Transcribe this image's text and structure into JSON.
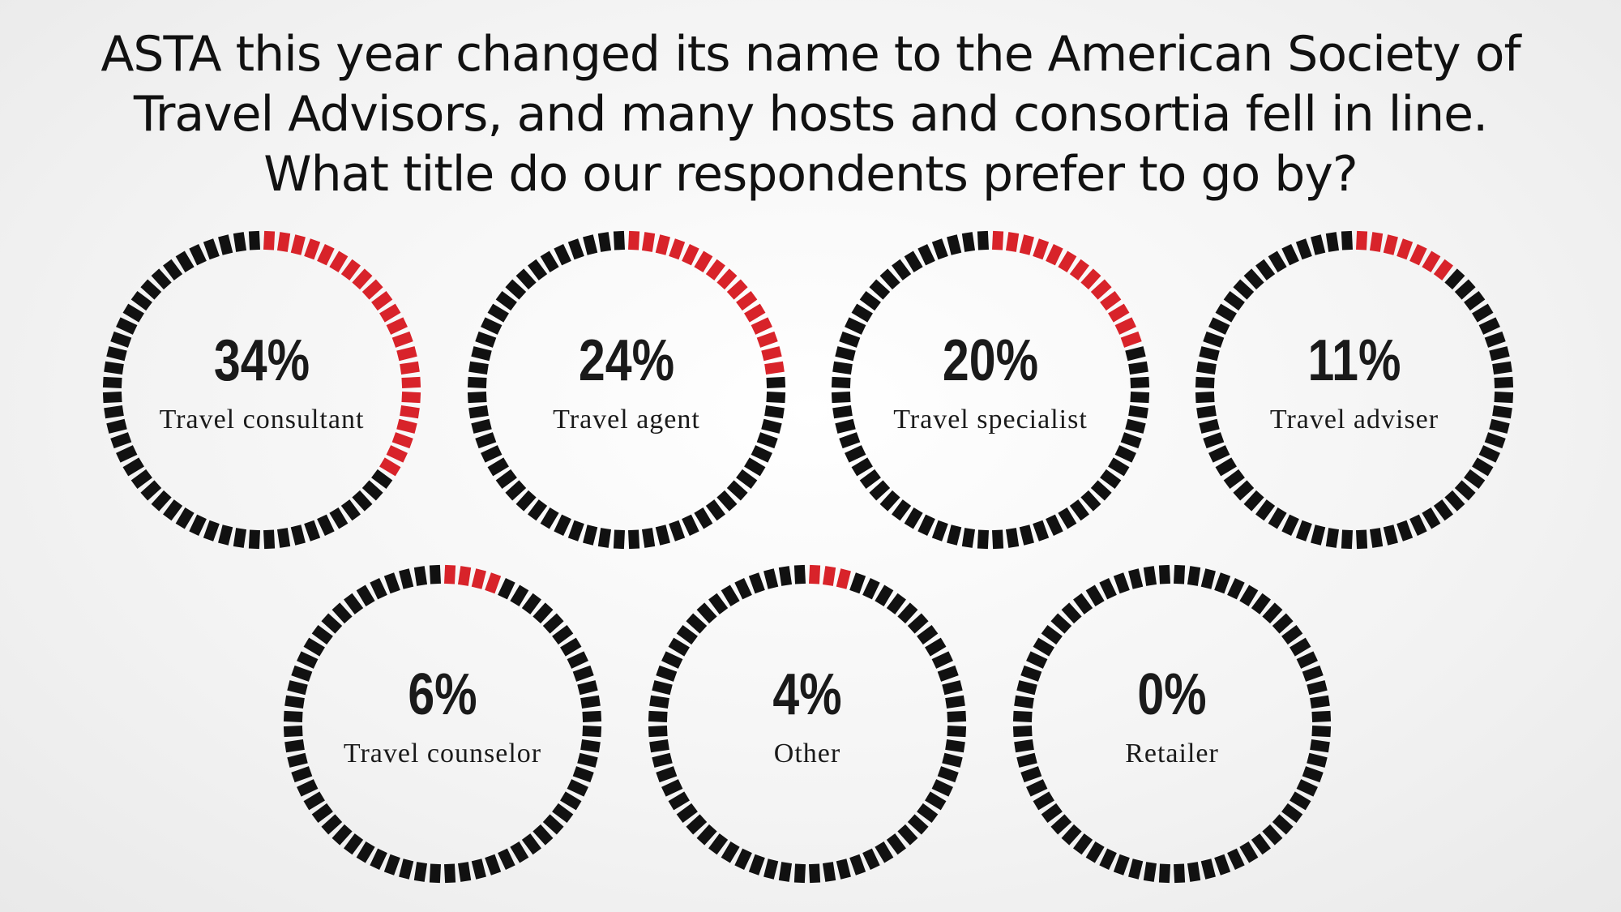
{
  "chart_data": {
    "type": "gauge",
    "title": "ASTA this year changed its name to the American Society of\nTravel Advisors, and many hosts and consortia fell in line.\nWhat title do our respondents prefer to go by?",
    "categories": [
      "Travel consultant",
      "Travel agent",
      "Travel specialist",
      "Travel adviser",
      "Travel counselor",
      "Other",
      "Retailer"
    ],
    "values": [
      34,
      24,
      20,
      11,
      6,
      4,
      0
    ],
    "value_labels": [
      "34%",
      "24%",
      "20%",
      "11%",
      "6%",
      "4%",
      "0%"
    ],
    "color": "#d8232a",
    "track_color": "#111111"
  }
}
